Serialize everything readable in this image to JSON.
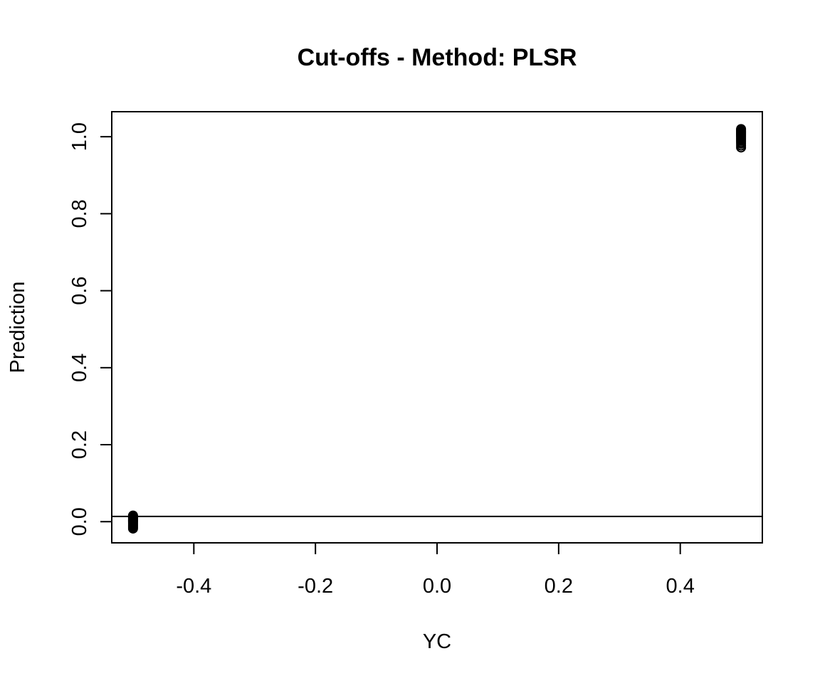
{
  "chart_data": {
    "type": "scatter",
    "title": "Cut-offs - Method: PLSR",
    "xlabel": "YC",
    "ylabel": "Prediction",
    "xlim": [
      -0.535,
      0.535
    ],
    "ylim": [
      -0.055,
      1.065
    ],
    "x_ticks": [
      -0.4,
      -0.2,
      0.0,
      0.2,
      0.4
    ],
    "x_tick_labels": [
      "-0.4",
      "-0.2",
      "0.0",
      "0.2",
      "0.4"
    ],
    "y_ticks": [
      0.0,
      0.2,
      0.4,
      0.6,
      0.8,
      1.0
    ],
    "y_tick_labels": [
      "0.0",
      "0.2",
      "0.4",
      "0.6",
      "0.8",
      "1.0"
    ],
    "cutoff_line_y": 0.0135,
    "grid": false,
    "legend": "none",
    "marker": "open-circle",
    "color": "#000000",
    "series": [
      {
        "x": [
          -0.5,
          -0.5,
          -0.5,
          -0.5,
          -0.5,
          -0.5,
          -0.5,
          -0.5,
          -0.5,
          -0.5,
          -0.5,
          -0.5,
          -0.5,
          -0.5,
          -0.5
        ],
        "y": [
          -0.018,
          -0.015,
          -0.012,
          -0.009,
          -0.006,
          -0.003,
          0.0,
          0.002,
          0.004,
          0.006,
          0.008,
          0.01,
          0.012,
          0.014,
          0.016
        ]
      },
      {
        "x": [
          0.5,
          0.5,
          0.5,
          0.5,
          0.5,
          0.5,
          0.5,
          0.5,
          0.5,
          0.5,
          0.5,
          0.5,
          0.5,
          0.5,
          0.5,
          0.5,
          0.5,
          0.5
        ],
        "y": [
          0.972,
          0.977,
          0.982,
          0.986,
          0.99,
          0.993,
          0.996,
          0.999,
          1.002,
          1.004,
          1.006,
          1.008,
          1.01,
          1.012,
          1.014,
          1.016,
          1.018,
          1.02
        ]
      }
    ]
  }
}
